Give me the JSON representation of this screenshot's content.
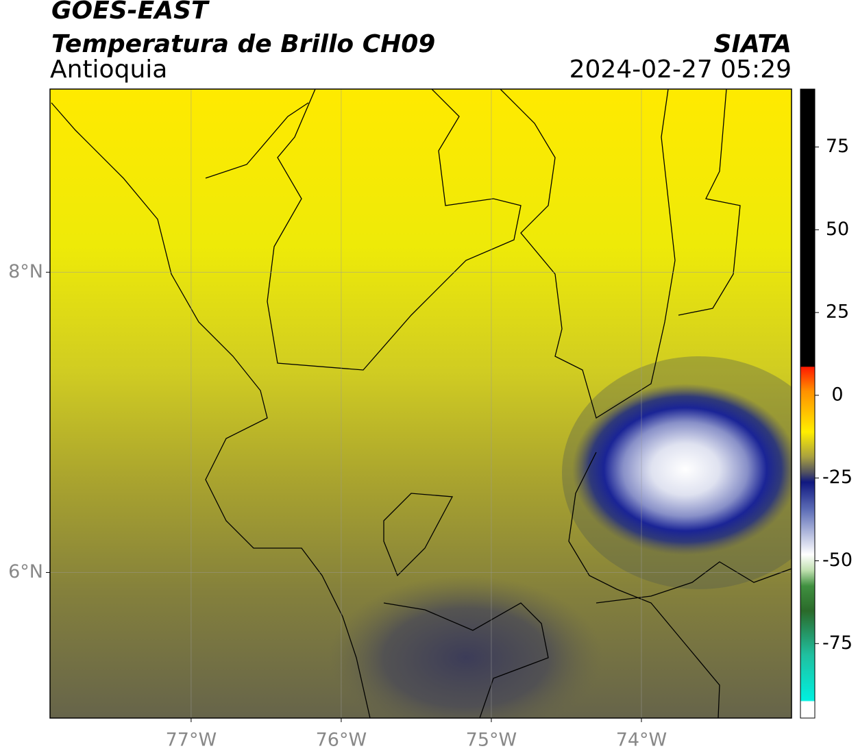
{
  "header": {
    "satellite": "GOES-EAST",
    "title": "Temperatura de Brillo CH09",
    "region": "Antioquia",
    "source": "SIATA",
    "datetime": "2024-02-27 05:29"
  },
  "map": {
    "xlim": [
      -77.94,
      -73.0
    ],
    "ylim": [
      5.03,
      9.22
    ],
    "xticks": [
      {
        "value": -77,
        "label": "77°W"
      },
      {
        "value": -76,
        "label": "76°W"
      },
      {
        "value": -75,
        "label": "75°W"
      },
      {
        "value": -74,
        "label": "74°W"
      }
    ],
    "yticks": [
      {
        "value": 6,
        "label": "6°N"
      },
      {
        "value": 8,
        "label": "8°N"
      }
    ],
    "grid": true
  },
  "colorbar": {
    "lim": [
      -97.5,
      92.5
    ],
    "ticks": [
      75,
      50,
      25,
      0,
      -25,
      -50,
      -75
    ]
  }
}
